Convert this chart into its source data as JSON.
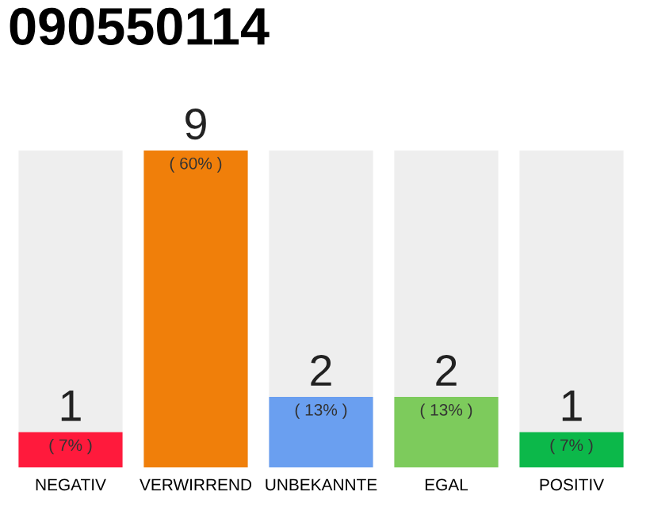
{
  "chart_data": {
    "type": "bar",
    "title": "090550114",
    "categories": [
      "NEGATIV",
      "VERWIRREND",
      "UNBEKANNTE",
      "EGAL",
      "POSITIV"
    ],
    "values": [
      1,
      9,
      2,
      2,
      1
    ],
    "colors": [
      "#ff1a3c",
      "#f07f0a",
      "#6a9ff0",
      "#7dcb5c",
      "#0cb84a"
    ],
    "value_labels": [
      "1\n( 7% )",
      "9\n( 60% )",
      "2\n( 13% )",
      "2\n( 13% )",
      "1\n( 7% )"
    ],
    "grid": false,
    "legend": false
  }
}
